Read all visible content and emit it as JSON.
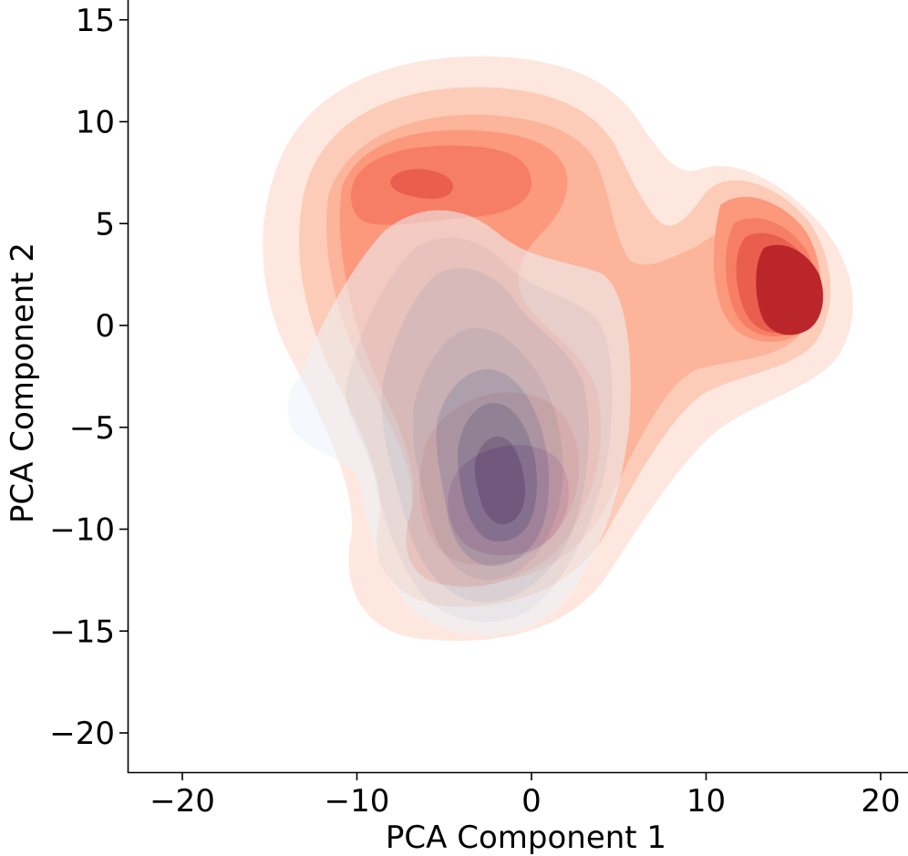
{
  "chart_data": {
    "type": "kde_contour",
    "xlabel": "PCA Component 1",
    "ylabel": "PCA Component 2",
    "xlim": [
      -23.3,
      21.6
    ],
    "ylim": [
      -22,
      16
    ],
    "xticks": [
      -20,
      -10,
      0,
      10,
      20
    ],
    "yticks": [
      -20,
      -15,
      -10,
      -5,
      0,
      5,
      10,
      15
    ],
    "x_tick_labels": [
      "−20",
      "−10",
      "0",
      "10",
      "20"
    ],
    "y_tick_labels": [
      "−20",
      "−15",
      "−10",
      "−5",
      "0",
      "5",
      "10",
      "15"
    ],
    "grid": false,
    "legend": "none",
    "series": [
      {
        "colormap": "Reds",
        "colors": [
          "#fee6dc",
          "#fcc8b2",
          "#fcae92",
          "#fc9172",
          "#f67457",
          "#e8513d",
          "#b6141a"
        ],
        "modes": [
          {
            "x": -4,
            "y": 7.5,
            "sx": 6.5,
            "sy": 3.2,
            "weight": 0.35
          },
          {
            "x": 14.5,
            "y": 1.5,
            "sx": 2.4,
            "sy": 2.4,
            "weight": 0.22
          },
          {
            "x": 0,
            "y": -8,
            "sx": 3.2,
            "sy": 3.6,
            "weight": 0.3
          },
          {
            "x": 5,
            "y": 2,
            "sx": 6,
            "sy": 3,
            "weight": 0.13
          }
        ]
      },
      {
        "colormap": "Blues",
        "colors": [
          "#edf3fa",
          "#d8e5f2",
          "#bcd4ea",
          "#9ec3e1",
          "#6ea7d3",
          "#3f84bd",
          "#1c5a9c"
        ],
        "modes": [
          {
            "x": -2,
            "y": -8,
            "sx": 2.5,
            "sy": 3.4,
            "weight": 0.55
          },
          {
            "x": -3,
            "y": -1,
            "sx": 4.5,
            "sy": 5,
            "weight": 0.3
          },
          {
            "x": -11,
            "y": -5,
            "sx": 2.5,
            "sy": 2.2,
            "weight": 0.15
          }
        ]
      }
    ]
  }
}
